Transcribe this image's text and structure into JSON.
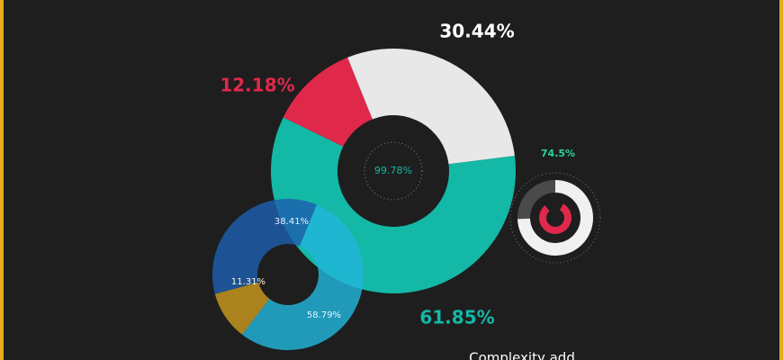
{
  "chart_data": [
    {
      "type": "donut",
      "values": [
        30.44,
        61.85,
        12.18
      ],
      "value_labels": [
        "30.44%",
        "61.85%",
        "12.18%"
      ],
      "colors": [
        "#e8e8e8",
        "#14b8a6",
        "#e0284a"
      ],
      "center_label": "99.78%"
    },
    {
      "type": "donut",
      "values": [
        38.41,
        58.79,
        11.31
      ],
      "value_labels": [
        "38.41%",
        "58.79%",
        "11.31%"
      ],
      "colors": [
        "#1d5fae",
        "#22b6dc",
        "#c99a1e"
      ]
    },
    {
      "type": "gauge",
      "value": 74.5,
      "value_label": "74.5%",
      "color": "#f0f0f0"
    }
  ],
  "caption": "Complexity add"
}
